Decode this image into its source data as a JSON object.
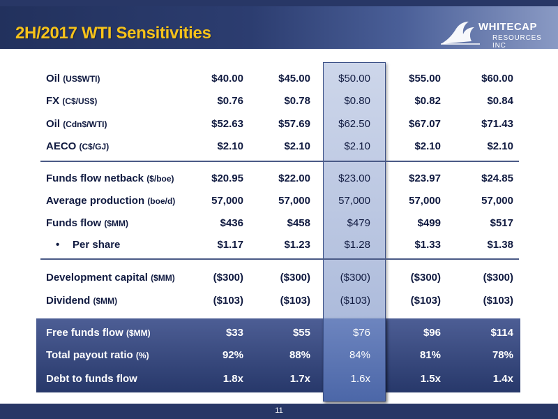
{
  "slide": {
    "title": "2H/2017 WTI Sensitivities",
    "page_number": "11"
  },
  "logo": {
    "line1": "WHITECAP",
    "line2": "RESOURCES INC",
    "icon": "wave-icon"
  },
  "colors": {
    "title": "#f6c21a",
    "header_bg": "#2c3d70",
    "footer_bg": "#283766",
    "text": "#101a40"
  },
  "table": {
    "sections": [
      {
        "rows": [
          {
            "label": "Oil",
            "unit": "(US$WTI)",
            "values": [
              "$40.00",
              "$45.00",
              "$50.00",
              "$55.00",
              "$60.00"
            ]
          },
          {
            "label": "FX",
            "unit": "(C$/US$)",
            "values": [
              "$0.76",
              "$0.78",
              "$0.80",
              "$0.82",
              "$0.84"
            ]
          },
          {
            "label": "Oil",
            "unit": "(Cdn$/WTI)",
            "values": [
              "$52.63",
              "$57.69",
              "$62.50",
              "$67.07",
              "$71.43"
            ]
          },
          {
            "label": "AECO",
            "unit": "(C$/GJ)",
            "values": [
              "$2.10",
              "$2.10",
              "$2.10",
              "$2.10",
              "$2.10"
            ]
          }
        ]
      },
      {
        "rows": [
          {
            "label": "Funds flow netback",
            "unit": "($/boe)",
            "values": [
              "$20.95",
              "$22.00",
              "$23.00",
              "$23.97",
              "$24.85"
            ]
          },
          {
            "label": "Average production",
            "unit": "(boe/d)",
            "values": [
              "57,000",
              "57,000",
              "57,000",
              "57,000",
              "57,000"
            ]
          },
          {
            "label": "Funds flow",
            "unit": "($MM)",
            "values": [
              "$436",
              "$458",
              "$479",
              "$499",
              "$517"
            ]
          },
          {
            "bullet": "•",
            "label": "Per share",
            "unit": "",
            "values": [
              "$1.17",
              "$1.23",
              "$1.28",
              "$1.33",
              "$1.38"
            ]
          }
        ]
      },
      {
        "rows": [
          {
            "label": "Development capital",
            "unit": "($MM)",
            "values": [
              "($300)",
              "($300)",
              "($300)",
              "($300)",
              "($300)"
            ]
          },
          {
            "label": "Dividend",
            "unit": "($MM)",
            "values": [
              "($103)",
              "($103)",
              "($103)",
              "($103)",
              "($103)"
            ]
          }
        ]
      },
      {
        "rows": [
          {
            "label": "Free funds flow",
            "unit": "($MM)",
            "values": [
              "$33",
              "$55",
              "$76",
              "$96",
              "$114"
            ]
          },
          {
            "label": "Total payout ratio",
            "unit": "(%)",
            "values": [
              "92%",
              "88%",
              "84%",
              "81%",
              "78%"
            ]
          },
          {
            "label": "Debt to funds flow",
            "unit": "",
            "values": [
              "1.8x",
              "1.7x",
              "1.6x",
              "1.5x",
              "1.4x"
            ]
          }
        ]
      }
    ]
  }
}
